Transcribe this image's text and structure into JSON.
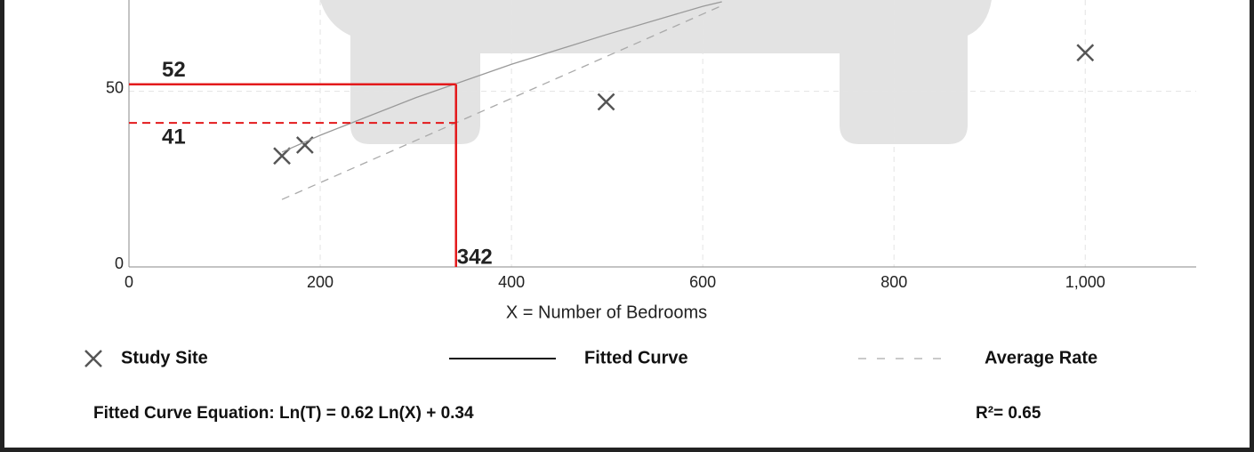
{
  "chart_data": {
    "type": "scatter",
    "x_label": "X = Number of Bedrooms",
    "xlim": [
      0,
      1116
    ],
    "ylim": [
      0,
      76
    ],
    "xticks": [
      0,
      200,
      400,
      600,
      800,
      {
        "value": 1000,
        "label": "1,000"
      }
    ],
    "yticks": [
      0,
      50
    ],
    "grid": true,
    "series": [
      {
        "name": "Study Site",
        "type": "scatter",
        "color": "#555555",
        "x": [
          160,
          184,
          499,
          1000
        ],
        "values": [
          31.6,
          34.7,
          47,
          61
        ]
      },
      {
        "name": "Fitted Curve",
        "type": "line",
        "color": "#999999",
        "x": [
          160,
          200,
          300,
          400,
          500,
          600,
          620
        ],
        "values": [
          32.7,
          37.5,
          48.2,
          57.7,
          66.2,
          74.2,
          75.5
        ]
      },
      {
        "name": "Average Rate",
        "type": "dashed",
        "color": "#aaaaaa",
        "x": [
          160,
          620
        ],
        "values": [
          19.2,
          74.4
        ]
      }
    ],
    "highlight": {
      "color": "#e31a1c",
      "x": 342,
      "fitted": 52,
      "average": 41
    },
    "equation": "Fitted Curve Equation: Ln(T) = 0.62 Ln(X) + 0.34",
    "r_squared": "R²= 0.65"
  }
}
